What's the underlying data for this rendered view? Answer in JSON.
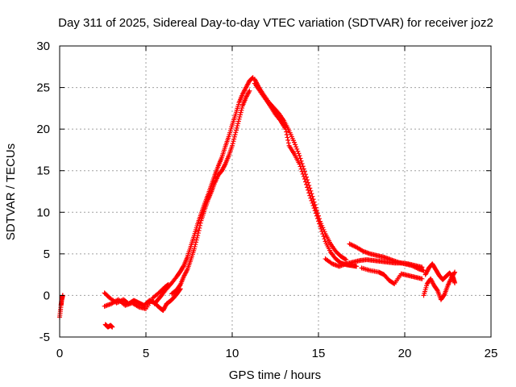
{
  "chart_data": {
    "type": "scatter",
    "title": "Day 311 of 2025, Sidereal Day-to-day VTEC variation (SDTVAR) for receiver joz2",
    "xlabel": "GPS time / hours",
    "ylabel": "SDTVAR / TECUs",
    "xlim": [
      0,
      25
    ],
    "ylim": [
      -5,
      30
    ],
    "xticks": [
      "0",
      "5",
      "10",
      "15",
      "20",
      "25"
    ],
    "yticks": [
      "-5",
      "0",
      "5",
      "10",
      "15",
      "20",
      "25",
      "30"
    ],
    "grid": true,
    "marker": "plus",
    "colors": {
      "series": "#ff0000"
    },
    "series": [
      {
        "name": "SDTVAR",
        "segments": [
          {
            "x": [
              0.0,
              0.08,
              0.12,
              0.18
            ],
            "y": [
              -2.6,
              -1.2,
              -0.5,
              0.0
            ]
          },
          {
            "x": [
              2.65,
              2.8,
              2.95,
              3.05
            ],
            "y": [
              -3.5,
              -3.8,
              -3.6,
              -3.8
            ]
          },
          {
            "x": [
              2.6,
              2.9,
              3.3,
              3.7,
              4.0,
              4.3,
              4.6,
              4.9,
              5.2,
              5.5,
              5.8,
              6.0,
              6.2,
              6.4,
              6.6,
              6.8,
              7.0
            ],
            "y": [
              0.3,
              -0.3,
              -0.9,
              -0.5,
              -1.0,
              -0.6,
              -0.9,
              -1.2,
              -0.6,
              -0.9,
              -1.5,
              -1.8,
              -1.0,
              -0.7,
              -0.3,
              0.2,
              0.8
            ]
          },
          {
            "x": [
              2.6,
              3.0,
              3.4,
              3.8,
              4.2,
              4.6,
              5.0,
              5.4,
              5.8,
              6.1,
              6.3
            ],
            "y": [
              -1.3,
              -1.0,
              -0.5,
              -1.2,
              -0.9,
              -1.4,
              -1.6,
              -0.3,
              0.4,
              1.0,
              1.3
            ]
          },
          {
            "x": [
              5.5,
              5.7,
              5.9,
              6.2,
              6.5,
              6.8,
              7.0,
              7.2,
              7.4,
              7.6,
              7.8,
              8.0,
              8.2,
              8.4,
              8.6,
              8.8,
              9.0,
              9.2,
              9.4,
              9.6,
              9.8,
              10.0,
              10.2,
              10.4,
              10.6,
              10.8,
              11.0,
              11.2
            ],
            "y": [
              -1.0,
              -0.5,
              0.0,
              0.8,
              1.5,
              2.3,
              2.9,
              3.6,
              4.6,
              5.9,
              7.2,
              8.6,
              9.8,
              11.0,
              12.1,
              13.3,
              14.5,
              15.6,
              16.6,
              17.9,
              19.1,
              20.5,
              21.8,
              23.2,
              24.2,
              25.0,
              25.8,
              26.2
            ]
          },
          {
            "x": [
              6.5,
              6.8,
              7.0,
              7.2,
              7.4,
              7.6,
              7.8,
              8.0,
              8.2,
              8.4,
              8.6,
              8.8,
              9.0,
              9.2,
              9.4,
              9.6,
              9.8,
              10.0,
              10.2,
              10.4,
              10.6,
              10.8,
              11.0
            ],
            "y": [
              0.2,
              0.7,
              1.3,
              2.3,
              3.1,
              4.3,
              5.6,
              7.2,
              9.0,
              10.3,
              11.5,
              12.5,
              13.6,
              14.5,
              15.0,
              15.8,
              16.8,
              18.0,
              19.6,
              21.2,
              22.8,
              23.8,
              24.6
            ]
          },
          {
            "x": [
              11.3,
              11.5,
              11.8,
              12.1,
              12.4,
              12.7,
              13.0,
              13.3,
              13.6,
              13.9,
              14.2,
              14.5,
              14.8,
              15.1,
              15.4,
              15.7,
              16.0,
              16.3,
              16.6
            ],
            "y": [
              26.0,
              25.2,
              24.2,
              23.3,
              22.6,
              21.9,
              21.0,
              19.8,
              18.4,
              16.8,
              14.9,
              12.9,
              10.9,
              8.9,
              7.4,
              6.2,
              5.3,
              4.7,
              4.3
            ]
          },
          {
            "x": [
              11.3,
              11.6,
              11.9,
              12.2,
              12.5,
              12.8,
              13.1,
              13.3,
              13.6,
              13.9,
              14.2,
              14.5,
              14.8,
              15.1,
              15.4,
              15.7,
              16.0,
              16.3,
              16.6,
              16.9,
              17.2
            ],
            "y": [
              25.5,
              24.6,
              23.7,
              22.8,
              21.8,
              21.0,
              20.0,
              18.0,
              17.0,
              15.8,
              14.0,
              12.0,
              10.2,
              8.3,
              6.5,
              5.2,
              4.4,
              3.9,
              3.7,
              3.6,
              3.5
            ]
          },
          {
            "x": [
              15.4,
              15.8,
              16.2,
              16.6,
              17.0,
              17.4,
              17.8,
              18.2,
              18.6,
              19.0,
              19.4,
              19.8,
              20.2,
              20.6,
              21.0
            ],
            "y": [
              4.4,
              3.8,
              3.5,
              3.8,
              4.0,
              4.2,
              4.3,
              4.2,
              4.1,
              4.0,
              3.9,
              3.9,
              3.8,
              3.6,
              3.4
            ]
          },
          {
            "x": [
              16.8,
              17.2,
              17.6,
              18.0,
              18.4,
              18.8,
              19.2,
              19.6,
              20.0,
              20.4,
              20.8,
              21.1
            ],
            "y": [
              6.2,
              5.8,
              5.3,
              5.0,
              4.8,
              4.6,
              4.3,
              4.0,
              3.8,
              3.6,
              3.2,
              3.0
            ]
          },
          {
            "x": [
              17.5,
              18.0,
              18.5,
              18.8,
              19.1,
              19.4,
              19.8,
              20.2,
              20.6,
              21.0
            ],
            "y": [
              3.3,
              3.0,
              2.8,
              2.5,
              1.8,
              1.4,
              2.6,
              2.4,
              2.2,
              2.0
            ]
          },
          {
            "x": [
              21.2,
              21.4,
              21.6,
              21.8,
              22.0,
              22.2,
              22.4,
              22.6,
              22.8,
              22.9
            ],
            "y": [
              2.5,
              3.3,
              3.8,
              3.1,
              2.4,
              1.9,
              2.3,
              2.7,
              2.2,
              1.5
            ]
          },
          {
            "x": [
              21.1,
              21.3,
              21.5,
              21.7,
              21.9,
              22.1,
              22.3,
              22.5,
              22.7,
              22.9
            ],
            "y": [
              0.0,
              1.4,
              2.0,
              1.2,
              0.6,
              -0.5,
              0.1,
              1.2,
              2.1,
              2.8
            ]
          }
        ]
      }
    ]
  }
}
